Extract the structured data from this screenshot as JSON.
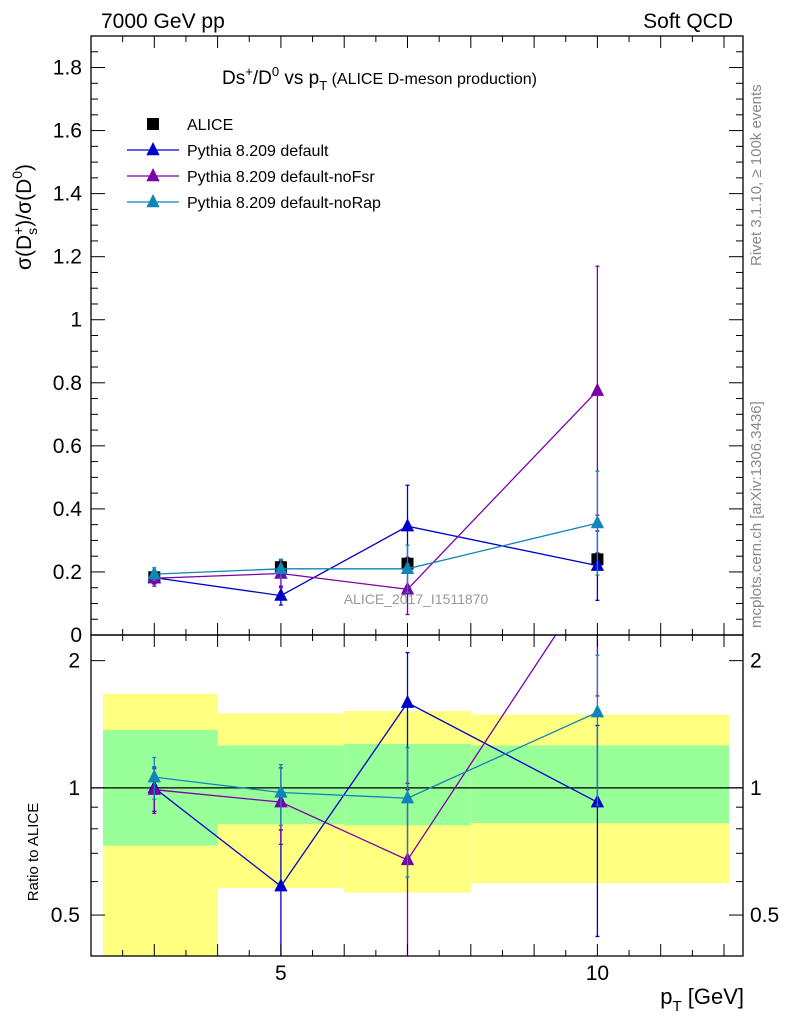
{
  "header": {
    "left": "7000 GeV pp",
    "right": "Soft QCD"
  },
  "side_labels": {
    "rivet": "Rivet 3.1.10, ≥ 100k events",
    "mcplots": "mcplots.cern.ch [arXiv:1306.3436]"
  },
  "watermark": "ALICE_2017_I1511870",
  "colors": {
    "data": "#000000",
    "default": "#0000cc",
    "noFsr": "#7a00aa",
    "noRap": "#0f85b8",
    "band_outer": "#ffff80",
    "band_inner": "#99ff99"
  },
  "chart_data": [
    {
      "type": "line",
      "title": "Ds⁺/D⁰ vs pT (ALICE D-meson production)",
      "xlabel": "",
      "ylabel": "σ(Ds⁺)/σ(D⁰)",
      "xlim": [
        2,
        12.3
      ],
      "ylim": [
        0,
        1.9
      ],
      "yticks": [
        0,
        0.2,
        0.4,
        0.6,
        0.8,
        1,
        1.2,
        1.4,
        1.6,
        1.8
      ],
      "ytick_labels": [
        "0",
        "0.2",
        "0.4",
        "0.6",
        "0.8",
        "1",
        "1.2",
        "1.4",
        "1.6",
        "1.8"
      ],
      "legend_position": "top-left",
      "series": [
        {
          "name": "ALICE",
          "key": "data",
          "marker": "square",
          "x": [
            3,
            5,
            7,
            10
          ],
          "y": [
            0.183,
            0.215,
            0.226,
            0.24
          ],
          "yerr": [
            0.02,
            0.02,
            0.02,
            0.02
          ]
        },
        {
          "name": "Pythia 8.209 default",
          "key": "default",
          "marker": "triangle",
          "x": [
            3,
            5,
            7,
            10
          ],
          "y": [
            0.182,
            0.125,
            0.345,
            0.22
          ],
          "yerr": [
            0.02,
            0.03,
            0.13,
            0.11
          ]
        },
        {
          "name": "Pythia 8.209 default-noFsr",
          "key": "noFsr",
          "marker": "triangle",
          "x": [
            3,
            5,
            7,
            10
          ],
          "y": [
            0.18,
            0.195,
            0.145,
            0.775
          ],
          "yerr": [
            0.025,
            0.045,
            0.08,
            0.395
          ]
        },
        {
          "name": "Pythia 8.209 default-noRap",
          "key": "noRap",
          "marker": "triangle",
          "x": [
            3,
            5,
            7,
            10
          ],
          "y": [
            0.193,
            0.21,
            0.21,
            0.355
          ],
          "yerr": [
            0.02,
            0.03,
            0.075,
            0.165
          ]
        }
      ]
    },
    {
      "type": "line",
      "xlabel": "pT [GeV]",
      "ylabel": "Ratio to ALICE",
      "xlim": [
        2,
        12.3
      ],
      "ylim": [
        0.4,
        2.3
      ],
      "yscale": "log",
      "xticks": [
        5,
        10
      ],
      "xtick_labels": [
        "5",
        "10"
      ],
      "yticks": [
        0.5,
        1,
        2
      ],
      "ytick_labels": [
        "0.5",
        "1",
        "2"
      ],
      "reference_line": 1,
      "bands": [
        {
          "x": [
            2,
            4
          ],
          "inner": [
            0.73,
            1.37
          ],
          "outer": [
            0.4,
            1.67
          ]
        },
        {
          "x": [
            4,
            6
          ],
          "inner": [
            0.82,
            1.26
          ],
          "outer": [
            0.58,
            1.5
          ]
        },
        {
          "x": [
            6,
            8
          ],
          "inner": [
            0.815,
            1.27
          ],
          "outer": [
            0.565,
            1.52
          ]
        },
        {
          "x": [
            8,
            12.2
          ],
          "inner": [
            0.825,
            1.26
          ],
          "outer": [
            0.595,
            1.49
          ]
        }
      ],
      "series": [
        {
          "name": "Pythia 8.209 default",
          "key": "default",
          "marker": "triangle",
          "x": [
            3,
            5,
            7,
            10
          ],
          "y": [
            1.0,
            0.585,
            1.59,
            0.925
          ],
          "yerr_low": [
            0.12,
            0.21,
            0.6,
            0.48
          ],
          "yerr_high": [
            0.12,
            0.21,
            0.5,
            0.48
          ]
        },
        {
          "name": "Pythia 8.209 default-noFsr",
          "key": "noFsr",
          "marker": "triangle",
          "x": [
            3,
            5,
            7,
            10
          ],
          "y": [
            0.99,
            0.925,
            0.675,
            3.25
          ],
          "yerr_low": [
            0.12,
            0.19,
            0.35,
            1.6
          ],
          "yerr_high": [
            0.12,
            0.19,
            0.35,
            1.6
          ]
        },
        {
          "name": "Pythia 8.209 default-noRap",
          "key": "noRap",
          "marker": "triangle",
          "x": [
            3,
            5,
            7,
            10
          ],
          "y": [
            1.06,
            0.975,
            0.945,
            1.51
          ],
          "yerr_low": [
            0.12,
            0.16,
            0.33,
            0.6
          ],
          "yerr_high": [
            0.12,
            0.16,
            0.3,
            0.55
          ]
        }
      ]
    }
  ]
}
